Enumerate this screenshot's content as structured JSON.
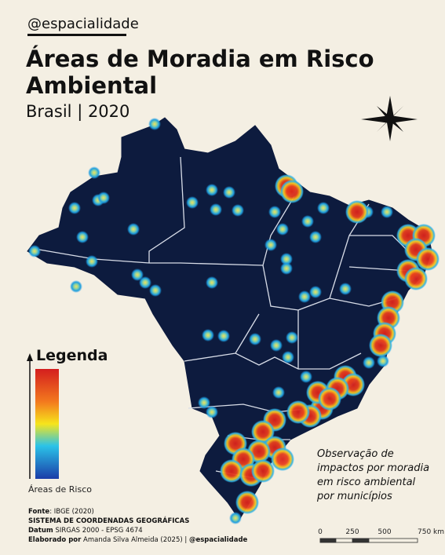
{
  "header": {
    "handle": "@espacialidade",
    "title": "Áreas de Moradia em Risco Ambiental",
    "subtitle": "Brasil | 2020"
  },
  "legend": {
    "title": "Legenda",
    "label": "Áreas de Risco"
  },
  "note": "Observação de impactos por moradia em risco ambiental por municípios",
  "credits": {
    "source_key": "Fonte",
    "source_text": ": IBGE (2020)",
    "system": "SISTEMA DE COORDENADAS GEOGRÁFICAS",
    "datum_key": "Datum",
    "datum_text": " SIRGAS 2000 - EPSG 4674",
    "author_key": "Elaborado por",
    "author_text": " Amanda Silva Almeida (2025) | ",
    "author_handle": "@espacialidade"
  },
  "scale": {
    "ticks": [
      "0",
      "250",
      "500",
      "750 km"
    ]
  }
}
